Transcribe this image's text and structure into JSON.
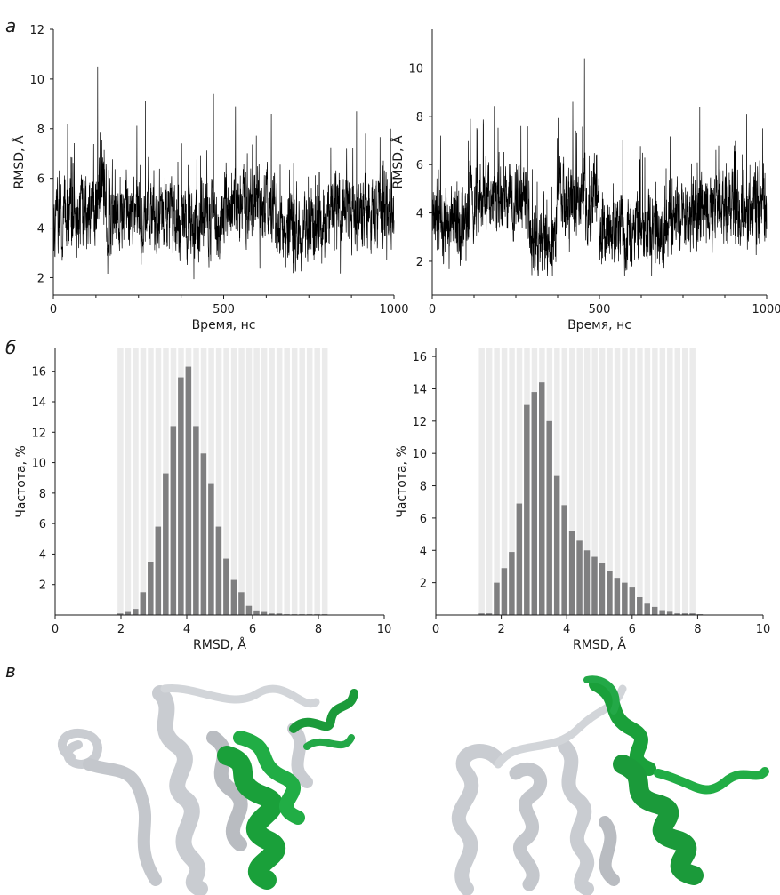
{
  "panels": {
    "a": "а",
    "b": "б",
    "c": "в"
  },
  "colors": {
    "trace": "#000000",
    "bar": "#7f7f80",
    "bar_band": "#ebebeb",
    "helix_grey": "#c9ccd1",
    "helix_green": "#1aa03a"
  },
  "chart_data": [
    {
      "type": "line",
      "ylabel": "RMSD, Å",
      "xlabel": "Время, нс",
      "xlim": [
        0,
        1000
      ],
      "ylim": [
        1.3,
        12
      ],
      "xticks": [
        "0",
        "500",
        "1000"
      ],
      "yticks": [
        "2",
        "4",
        "6",
        "8",
        "10",
        "12"
      ],
      "x_range": [
        0,
        1000
      ],
      "trace_stats": {
        "baseline_mean": 4.6,
        "min": 1.8,
        "max": 10.5
      },
      "segments": [
        {
          "x": [
            0,
            130
          ],
          "mean": 4.5
        },
        {
          "x": [
            130,
            155
          ],
          "mean": 5.8
        },
        {
          "x": [
            155,
            400
          ],
          "mean": 4.6
        },
        {
          "x": [
            400,
            500
          ],
          "mean": 4.3
        },
        {
          "x": [
            500,
            650
          ],
          "mean": 4.9
        },
        {
          "x": [
            650,
            800
          ],
          "mean": 4.0
        },
        {
          "x": [
            800,
            1000
          ],
          "mean": 4.7
        }
      ],
      "spikes": [
        [
          130,
          10.5
        ],
        [
          42,
          8.2
        ],
        [
          270,
          9.1
        ],
        [
          470,
          9.4
        ],
        [
          535,
          8.9
        ],
        [
          640,
          8.6
        ],
        [
          890,
          8.7
        ],
        [
          990,
          8.0
        ]
      ]
    },
    {
      "type": "line",
      "ylabel": "RMSD, Å",
      "xlabel": "Время, нс",
      "xlim": [
        0,
        1000
      ],
      "ylim": [
        0.6,
        11.6
      ],
      "xticks": [
        "0",
        "500",
        "1000"
      ],
      "yticks": [
        "2",
        "4",
        "6",
        "8",
        "10"
      ],
      "x_range": [
        0,
        1000
      ],
      "trace_stats": {
        "min": 1.4,
        "max": 10.4
      },
      "segments": [
        {
          "x": [
            0,
            110
          ],
          "mean": 3.7
        },
        {
          "x": [
            110,
            290
          ],
          "mean": 4.6
        },
        {
          "x": [
            290,
            370
          ],
          "mean": 2.8
        },
        {
          "x": [
            370,
            500
          ],
          "mean": 4.6
        },
        {
          "x": [
            500,
            620
          ],
          "mean": 3.2
        },
        {
          "x": [
            620,
            700
          ],
          "mean": 3.4
        },
        {
          "x": [
            700,
            780
          ],
          "mean": 3.7
        },
        {
          "x": [
            780,
            1000
          ],
          "mean": 4.2
        }
      ],
      "spikes": [
        [
          455,
          10.4
        ],
        [
          25,
          7.2
        ],
        [
          265,
          7.6
        ],
        [
          420,
          8.6
        ],
        [
          570,
          7.0
        ],
        [
          800,
          8.4
        ],
        [
          940,
          8.1
        ]
      ]
    },
    {
      "type": "bar",
      "ylabel": "Частота, %",
      "xlabel": "RMSD, Å",
      "xlim": [
        0,
        10
      ],
      "ylim": [
        0,
        17.5
      ],
      "xticks": [
        "0",
        "2",
        "4",
        "6",
        "8",
        "10"
      ],
      "yticks": [
        "2",
        "4",
        "6",
        "8",
        "10",
        "12",
        "14",
        "16"
      ],
      "bin_width": 0.23,
      "bins_center": [
        1.98,
        2.21,
        2.44,
        2.67,
        2.9,
        3.13,
        3.36,
        3.59,
        3.82,
        4.05,
        4.28,
        4.51,
        4.74,
        4.97,
        5.2,
        5.43,
        5.66,
        5.89,
        6.12,
        6.35,
        6.58,
        6.81,
        7.04,
        7.27,
        7.5,
        7.73,
        7.96,
        8.19
      ],
      "values": [
        0.1,
        0.2,
        0.4,
        1.5,
        3.5,
        5.8,
        9.3,
        12.4,
        15.6,
        16.3,
        12.4,
        10.6,
        8.6,
        5.8,
        3.7,
        2.3,
        1.5,
        0.6,
        0.3,
        0.2,
        0.1,
        0.1,
        0.05,
        0.05,
        0.05,
        0.05,
        0.05,
        0.05
      ],
      "band_range": [
        1.87,
        8.3
      ]
    },
    {
      "type": "bar",
      "ylabel": "Частота, %",
      "xlabel": "RMSD, Å",
      "xlim": [
        0,
        10
      ],
      "ylim": [
        0,
        16.5
      ],
      "xticks": [
        "0",
        "2",
        "4",
        "6",
        "8",
        "10"
      ],
      "yticks": [
        "2",
        "4",
        "6",
        "8",
        "10",
        "12",
        "14",
        "16"
      ],
      "bin_width": 0.23,
      "bins_center": [
        1.4,
        1.63,
        1.86,
        2.09,
        2.32,
        2.55,
        2.78,
        3.01,
        3.24,
        3.47,
        3.7,
        3.93,
        4.16,
        4.39,
        4.62,
        4.85,
        5.08,
        5.31,
        5.54,
        5.77,
        6.0,
        6.23,
        6.46,
        6.69,
        6.92,
        7.15,
        7.38,
        7.61,
        7.84,
        8.07
      ],
      "values": [
        0.1,
        0.1,
        2.0,
        2.9,
        3.9,
        6.9,
        13.0,
        13.8,
        14.4,
        12.0,
        8.6,
        6.8,
        5.2,
        4.6,
        4.0,
        3.6,
        3.2,
        2.7,
        2.3,
        2.0,
        1.7,
        1.1,
        0.7,
        0.5,
        0.3,
        0.2,
        0.1,
        0.1,
        0.1,
        0.05
      ],
      "band_range": [
        1.29,
        7.8
      ]
    }
  ]
}
